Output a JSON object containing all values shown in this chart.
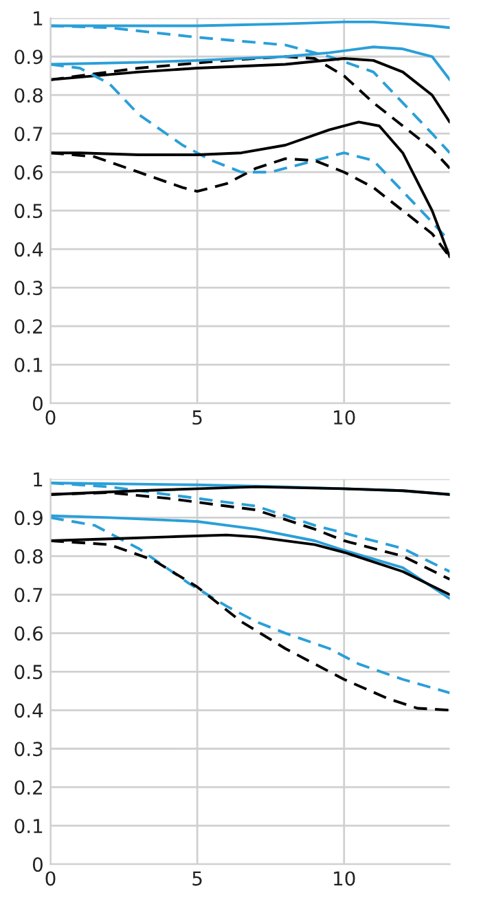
{
  "chart_data": [
    {
      "type": "line",
      "xlim": [
        0,
        13.6
      ],
      "ylim": [
        0,
        1
      ],
      "xticks": [
        0,
        5,
        10
      ],
      "yticks": [
        0,
        0.1,
        0.2,
        0.3,
        0.4,
        0.5,
        0.6,
        0.7,
        0.8,
        0.9,
        1
      ],
      "grid": true,
      "marker": "none",
      "series": [
        {
          "color": "#2a9fd8",
          "line_style": "solid",
          "x": [
            0,
            2,
            5,
            8,
            10,
            11,
            12,
            13,
            13.6
          ],
          "values": [
            0.98,
            0.98,
            0.98,
            0.985,
            0.99,
            0.99,
            0.985,
            0.98,
            0.975
          ]
        },
        {
          "color": "#2a9fd8",
          "line_style": "dashed",
          "x": [
            0,
            2,
            5,
            8,
            9.5,
            11,
            12,
            13,
            13.6
          ],
          "values": [
            0.98,
            0.975,
            0.95,
            0.93,
            0.9,
            0.86,
            0.78,
            0.7,
            0.65
          ]
        },
        {
          "color": "#000000",
          "line_style": "solid",
          "x": [
            0,
            3,
            5,
            8,
            10,
            11,
            12,
            13,
            13.6
          ],
          "values": [
            0.84,
            0.86,
            0.87,
            0.88,
            0.895,
            0.89,
            0.86,
            0.8,
            0.73
          ]
        },
        {
          "color": "#000000",
          "line_style": "dashed",
          "x": [
            0,
            3,
            6,
            8,
            9,
            10,
            11,
            12,
            13,
            13.6
          ],
          "values": [
            0.84,
            0.87,
            0.89,
            0.9,
            0.895,
            0.85,
            0.78,
            0.72,
            0.66,
            0.61
          ]
        },
        {
          "color": "#2a9fd8",
          "line_style": "solid",
          "x": [
            0,
            3,
            5,
            8,
            9.5,
            11,
            12,
            13,
            13.6
          ],
          "values": [
            0.88,
            0.885,
            0.89,
            0.9,
            0.91,
            0.925,
            0.92,
            0.9,
            0.84
          ]
        },
        {
          "color": "#2a9fd8",
          "line_style": "dashed",
          "x": [
            0,
            1,
            2,
            3,
            4.5,
            5.5,
            6.5,
            7.5,
            9,
            10,
            11,
            12,
            13,
            13.6
          ],
          "values": [
            0.88,
            0.87,
            0.83,
            0.75,
            0.67,
            0.63,
            0.6,
            0.6,
            0.63,
            0.65,
            0.63,
            0.55,
            0.47,
            0.42
          ]
        },
        {
          "color": "#000000",
          "line_style": "solid",
          "x": [
            0,
            1,
            3,
            5,
            6.5,
            8,
            9.5,
            10.5,
            11.2,
            12,
            13,
            13.6
          ],
          "values": [
            0.65,
            0.65,
            0.645,
            0.645,
            0.65,
            0.67,
            0.71,
            0.73,
            0.72,
            0.65,
            0.5,
            0.38
          ]
        },
        {
          "color": "#000000",
          "line_style": "dashed",
          "x": [
            0,
            1.5,
            3,
            4.5,
            5,
            6,
            7,
            8,
            9,
            10,
            11,
            12,
            13,
            13.6
          ],
          "values": [
            0.65,
            0.64,
            0.6,
            0.56,
            0.55,
            0.57,
            0.61,
            0.635,
            0.63,
            0.6,
            0.56,
            0.5,
            0.44,
            0.38
          ]
        }
      ]
    },
    {
      "type": "line",
      "xlim": [
        0,
        13.6
      ],
      "ylim": [
        0,
        1
      ],
      "xticks": [
        0,
        5,
        10
      ],
      "yticks": [
        0,
        0.1,
        0.2,
        0.3,
        0.4,
        0.5,
        0.6,
        0.7,
        0.8,
        0.9,
        1
      ],
      "grid": true,
      "marker": "none",
      "series": [
        {
          "color": "#2a9fd8",
          "line_style": "solid",
          "x": [
            0,
            5,
            8,
            10,
            12,
            13.6
          ],
          "values": [
            0.99,
            0.985,
            0.98,
            0.975,
            0.97,
            0.96
          ]
        },
        {
          "color": "#2a9fd8",
          "line_style": "dashed",
          "x": [
            0,
            2,
            4,
            7,
            9,
            10,
            12,
            13.6
          ],
          "values": [
            0.99,
            0.98,
            0.96,
            0.93,
            0.88,
            0.86,
            0.82,
            0.76
          ]
        },
        {
          "color": "#000000",
          "line_style": "solid",
          "x": [
            0,
            3,
            5,
            7,
            10,
            12,
            13.6
          ],
          "values": [
            0.96,
            0.97,
            0.975,
            0.98,
            0.975,
            0.97,
            0.96
          ]
        },
        {
          "color": "#000000",
          "line_style": "dashed",
          "x": [
            0,
            2,
            4,
            7,
            9,
            10,
            12,
            13.6
          ],
          "values": [
            0.96,
            0.965,
            0.95,
            0.92,
            0.87,
            0.84,
            0.8,
            0.74
          ]
        },
        {
          "color": "#2a9fd8",
          "line_style": "solid",
          "x": [
            0,
            2,
            5,
            7,
            9,
            10,
            12,
            13.6
          ],
          "values": [
            0.905,
            0.9,
            0.89,
            0.87,
            0.84,
            0.815,
            0.77,
            0.69
          ]
        },
        {
          "color": "#2a9fd8",
          "line_style": "dashed",
          "x": [
            0,
            1.5,
            3,
            4.7,
            6,
            7,
            8,
            9.5,
            10.5,
            12,
            13.6
          ],
          "values": [
            0.9,
            0.88,
            0.82,
            0.73,
            0.67,
            0.63,
            0.6,
            0.56,
            0.52,
            0.48,
            0.445
          ]
        },
        {
          "color": "#000000",
          "line_style": "solid",
          "x": [
            0,
            2,
            4,
            6,
            7,
            9,
            10,
            12,
            13.6
          ],
          "values": [
            0.84,
            0.845,
            0.85,
            0.855,
            0.85,
            0.83,
            0.81,
            0.76,
            0.7
          ]
        },
        {
          "color": "#000000",
          "line_style": "dashed",
          "x": [
            0,
            2,
            3.5,
            5,
            6.5,
            8,
            9,
            10,
            11.5,
            12.5,
            13.6
          ],
          "values": [
            0.84,
            0.83,
            0.79,
            0.72,
            0.63,
            0.56,
            0.52,
            0.48,
            0.43,
            0.405,
            0.4
          ]
        }
      ]
    }
  ]
}
